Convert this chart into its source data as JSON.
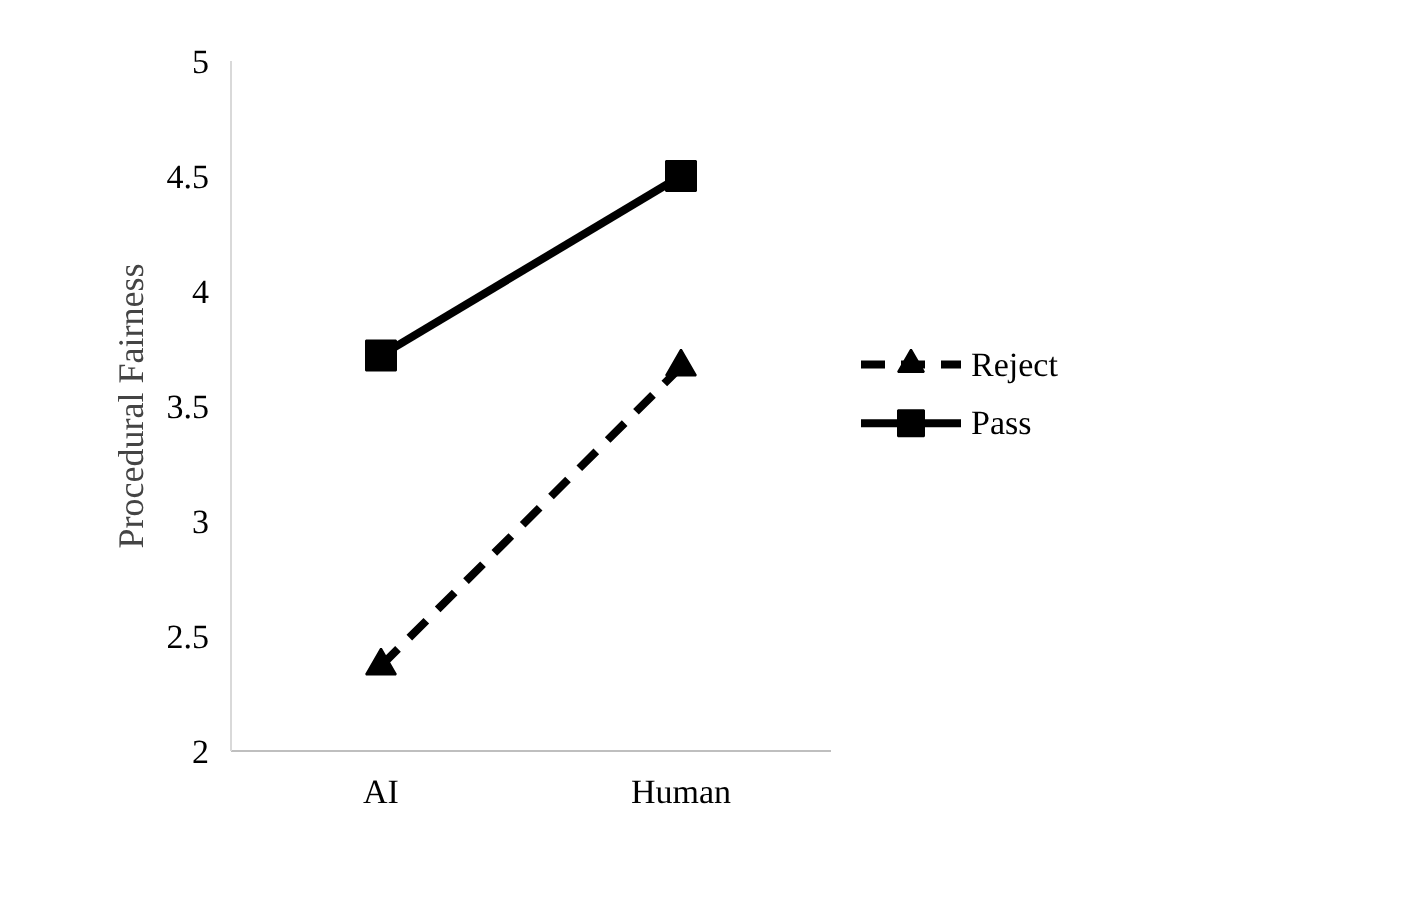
{
  "chart_data": {
    "type": "line",
    "ylabel": "Procedural Fairness",
    "categories": [
      "AI",
      "Human"
    ],
    "series": [
      {
        "name": "Reject",
        "color": "#000000",
        "values": [
          2.37,
          3.67
        ],
        "marker": "triangle",
        "line_style": "dashed"
      },
      {
        "name": "Pass",
        "color": "#000000",
        "values": [
          3.72,
          4.5
        ],
        "marker": "square",
        "line_style": "solid"
      }
    ],
    "ylim": [
      2,
      5
    ],
    "yticks": [
      2,
      2.5,
      3,
      3.5,
      4,
      4.5,
      5
    ],
    "grid": false,
    "legend": "right"
  }
}
